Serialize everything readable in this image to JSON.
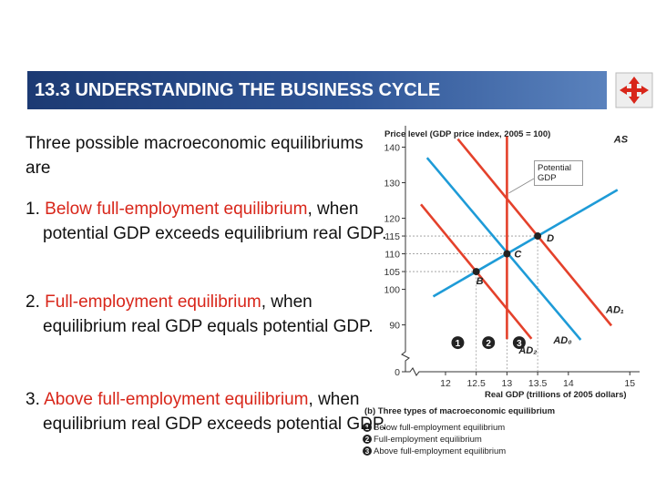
{
  "header": {
    "title": "13.3  UNDERSTANDING THE BUSINESS CYCLE"
  },
  "intro": "Three possible macroeconomic equilibriums are",
  "items": [
    {
      "number": "1.",
      "term": "Below full-employment equilibrium",
      "text": ", when potential GDP exceeds equilibrium real GDP."
    },
    {
      "number": "2.",
      "term": "Full-employment  equilibrium",
      "text": ", when equilibrium real GDP equals potential GDP."
    },
    {
      "number": "3.",
      "term": "Above full-employment equilibrium",
      "text": ", when equilibrium real GDP exceeds potential GDP."
    }
  ],
  "chart_data": {
    "type": "line",
    "y_label": "Price level (GDP price index, 2005 = 100)",
    "x_label": "Real GDP (trillions of 2005 dollars)",
    "xlim": [
      0,
      15.1
    ],
    "ylim": [
      0,
      145
    ],
    "x_break": [
      0,
      11.6
    ],
    "y_break": [
      0,
      84
    ],
    "xticks": [
      12,
      12.5,
      13,
      13.5,
      14,
      15
    ],
    "yticks": [
      0,
      90,
      100,
      105,
      110,
      115,
      120,
      130,
      140
    ],
    "series": [
      {
        "name": "AS",
        "color": "#1e9bd7",
        "x": [
          11.8,
          14.8
        ],
        "values": [
          98,
          128
        ]
      },
      {
        "name": "AD₀",
        "color": "#1e9bd7",
        "x": [
          11.7,
          14.2
        ],
        "values": [
          137,
          85.8
        ]
      },
      {
        "name": "AD₁",
        "color": "#e4412b",
        "x": [
          12.2,
          14.7
        ],
        "values": [
          142.3,
          89.8
        ]
      },
      {
        "name": "AD₂",
        "color": "#e4412b",
        "x": [
          11.6,
          13.4
        ],
        "values": [
          123.9,
          86.1
        ]
      },
      {
        "name": "Potential GDP",
        "color": "#e4412b",
        "x": [
          13,
          13
        ],
        "values": [
          86,
          143
        ]
      }
    ],
    "points": [
      {
        "label": "B",
        "x": 12.5,
        "y": 105
      },
      {
        "label": "C",
        "x": 13,
        "y": 110
      },
      {
        "label": "D",
        "x": 13.5,
        "y": 115
      }
    ],
    "markers": [
      {
        "label": "1",
        "x": 12.2,
        "y": 85
      },
      {
        "label": "2",
        "x": 12.7,
        "y": 85
      },
      {
        "label": "3",
        "x": 13.2,
        "y": 85
      }
    ],
    "caption": "(b) Three types of macroeconomic equilibrium",
    "legend": [
      {
        "marker": "1",
        "text": "Below full-employment equilibrium"
      },
      {
        "marker": "2",
        "text": "Full-employment equilibrium"
      },
      {
        "marker": "3",
        "text": "Above full-employment equilibrium"
      }
    ]
  }
}
